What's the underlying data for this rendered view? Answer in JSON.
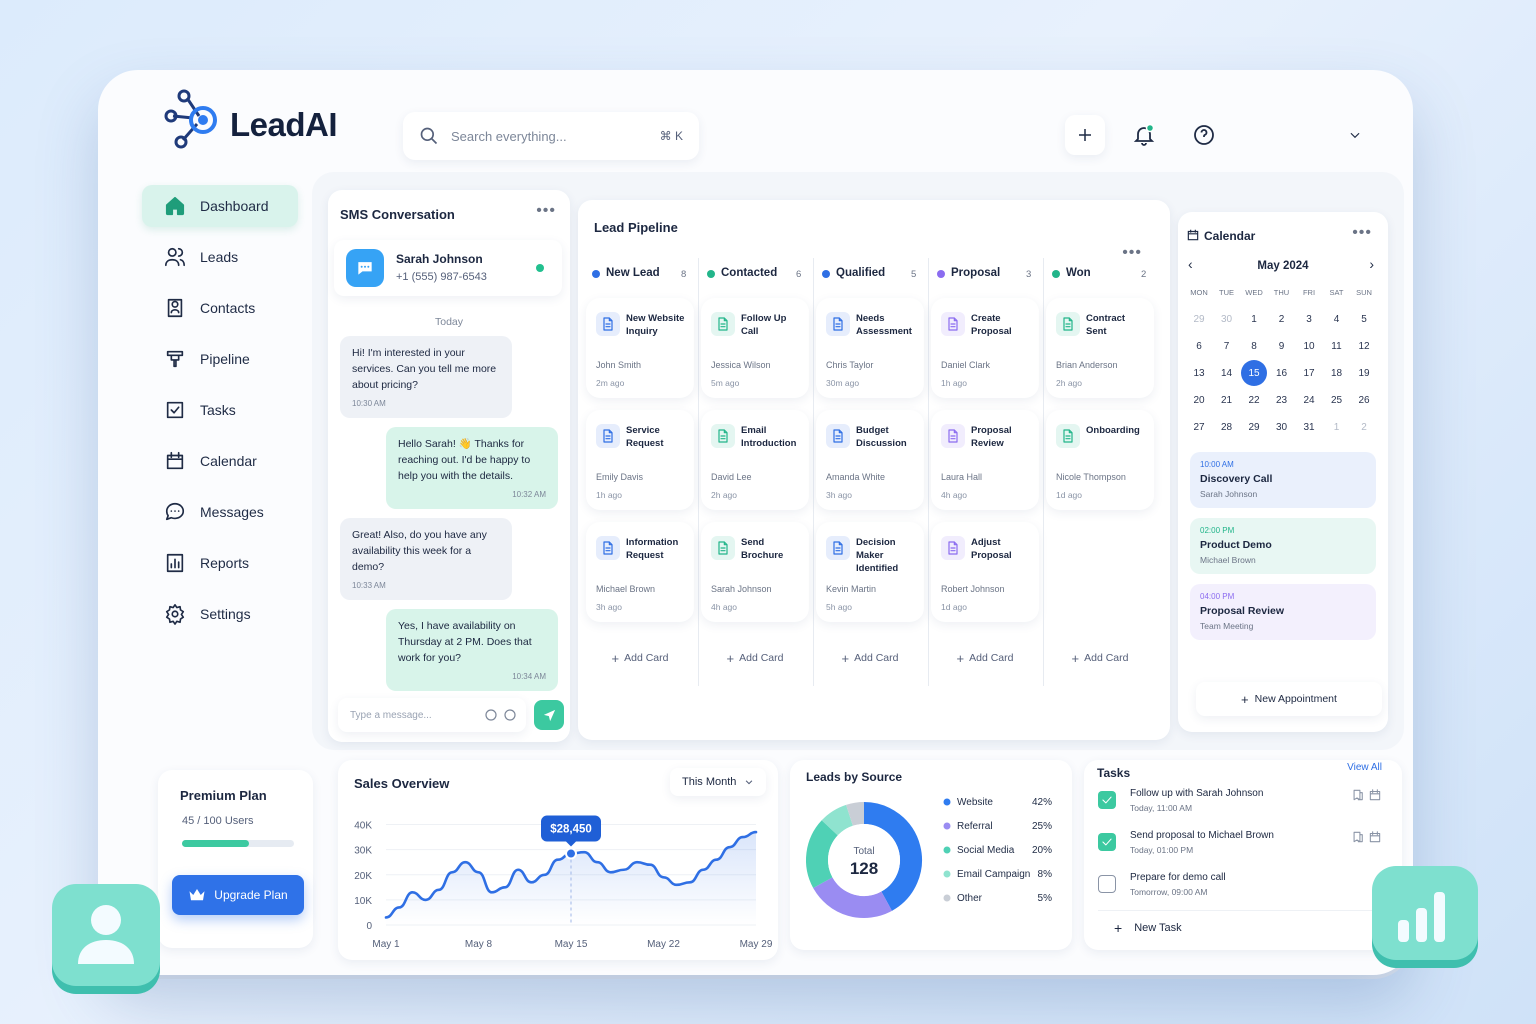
{
  "brand": "LeadAI",
  "search": {
    "placeholder": "Search everything...",
    "shortcut": "⌘ K"
  },
  "nav": [
    "Dashboard",
    "Leads",
    "Contacts",
    "Pipeline",
    "Tasks",
    "Calendar",
    "Messages",
    "Reports",
    "Settings"
  ],
  "plan": {
    "title": "Premium Plan",
    "usage": "45 / 100 Users",
    "button": "Upgrade Plan"
  },
  "sms": {
    "title": "SMS Conversation",
    "contact": {
      "name": "Sarah Johnson",
      "phone": "+1 (555) 987-6543"
    },
    "day": "Today",
    "messages": [
      {
        "from": "them",
        "text": "Hi! I'm interested in your services. Can you tell me more about pricing?",
        "time": "10:30 AM"
      },
      {
        "from": "me",
        "text": "Hello Sarah! 👋 Thanks for reaching out. I'd be happy to help you with the details.",
        "time": "10:32 AM"
      },
      {
        "from": "them",
        "text": "Great! Also, do you have any availability this week for a demo?",
        "time": "10:33 AM"
      },
      {
        "from": "me",
        "text": "Yes, I have availability on Thursday at 2 PM. Does that work for you?",
        "time": "10:34 AM"
      }
    ],
    "input_placeholder": "Type a message..."
  },
  "pipeline": {
    "title": "Lead Pipeline",
    "add_card": "Add Card",
    "columns": [
      {
        "name": "New Lead",
        "count": 8,
        "color": "#2f6fe4",
        "cards": [
          {
            "title": "New Website Inquiry",
            "person": "John Smith",
            "time": "2m ago"
          },
          {
            "title": "Service Request",
            "person": "Emily Davis",
            "time": "1h ago"
          },
          {
            "title": "Information Request",
            "person": "Michael Brown",
            "time": "3h ago"
          }
        ]
      },
      {
        "name": "Contacted",
        "count": 6,
        "color": "#22b58a",
        "cards": [
          {
            "title": "Follow Up Call",
            "person": "Jessica Wilson",
            "time": "5m ago"
          },
          {
            "title": "Email Introduction",
            "person": "David Lee",
            "time": "2h ago"
          },
          {
            "title": "Send Brochure",
            "person": "Sarah Johnson",
            "time": "4h ago"
          }
        ]
      },
      {
        "name": "Qualified",
        "count": 5,
        "color": "#2f6fe4",
        "cards": [
          {
            "title": "Needs Assessment",
            "person": "Chris Taylor",
            "time": "30m ago"
          },
          {
            "title": "Budget Discussion",
            "person": "Amanda White",
            "time": "3h ago"
          },
          {
            "title": "Decision Maker Identified",
            "person": "Kevin Martin",
            "time": "5h ago"
          }
        ]
      },
      {
        "name": "Proposal",
        "count": 3,
        "color": "#8b6cf0",
        "cards": [
          {
            "title": "Create Proposal",
            "person": "Daniel Clark",
            "time": "1h ago"
          },
          {
            "title": "Proposal Review",
            "person": "Laura Hall",
            "time": "4h ago"
          },
          {
            "title": "Adjust Proposal",
            "person": "Robert Johnson",
            "time": "1d ago"
          }
        ]
      },
      {
        "name": "Won",
        "count": 2,
        "color": "#22b58a",
        "cards": [
          {
            "title": "Contract Sent",
            "person": "Brian Anderson",
            "time": "2h ago"
          },
          {
            "title": "Onboarding",
            "person": "Nicole Thompson",
            "time": "1d ago"
          }
        ]
      }
    ]
  },
  "calendar": {
    "title": "Calendar",
    "month": "May 2024",
    "weekdays": [
      "MON",
      "TUE",
      "WED",
      "THU",
      "FRI",
      "SAT",
      "SUN"
    ],
    "days": [
      29,
      30,
      1,
      2,
      3,
      4,
      5,
      6,
      7,
      8,
      9,
      10,
      11,
      12,
      13,
      14,
      15,
      16,
      17,
      18,
      19,
      20,
      21,
      22,
      23,
      24,
      25,
      26,
      27,
      28,
      29,
      30,
      31,
      1,
      2
    ],
    "selected": 15,
    "events": [
      {
        "time": "10:00 AM",
        "title": "Discovery Call",
        "with": "Sarah Johnson",
        "color": "#2f6fe4"
      },
      {
        "time": "02:00 PM",
        "title": "Product Demo",
        "with": "Michael Brown",
        "color": "#22b58a"
      },
      {
        "time": "04:00 PM",
        "title": "Proposal Review",
        "with": "Team Meeting",
        "color": "#8b6cf0"
      }
    ],
    "new_appointment": "New Appointment"
  },
  "chart_data": [
    {
      "type": "line",
      "title": "Sales Overview",
      "period": "This Month",
      "categories": [
        "May 1",
        null,
        null,
        null,
        null,
        null,
        null,
        "May 8",
        null,
        null,
        null,
        null,
        null,
        null,
        "May 15",
        null,
        null,
        null,
        null,
        null,
        null,
        "May 22",
        null,
        null,
        null,
        null,
        null,
        null,
        "May 29"
      ],
      "series": [
        {
          "color": "#2f6fe4",
          "values": [
            3000,
            7000,
            13000,
            10000,
            14000,
            21000,
            25000,
            21000,
            13000,
            15000,
            22000,
            17000,
            20000,
            26000,
            28450,
            29000,
            25000,
            21000,
            22000,
            25000,
            24000,
            19000,
            16000,
            17000,
            22000,
            26000,
            31000,
            35000,
            37000
          ],
          "value_labels": [
            null,
            null,
            null,
            null,
            null,
            null,
            null,
            null,
            null,
            null,
            null,
            null,
            null,
            null,
            "$28,450",
            null,
            null,
            null,
            null,
            null,
            null,
            null,
            null,
            null,
            null,
            null,
            null,
            null,
            null
          ]
        }
      ],
      "ylim": [
        0,
        45000
      ],
      "yticks": [
        0,
        {
          "value": 10000,
          "label": "10K"
        },
        {
          "value": 20000,
          "label": "20K"
        },
        {
          "value": 30000,
          "label": "30K"
        },
        {
          "value": 40000,
          "label": "40K"
        }
      ]
    },
    {
      "type": "pie",
      "title": "Leads by Source",
      "center_label": "Total",
      "total": 128,
      "categories": [
        "Website",
        "Referral",
        "Social Media",
        "Email Campaign",
        "Other"
      ],
      "values": [
        42,
        25,
        20,
        8,
        5
      ],
      "value_labels": [
        "42%",
        "25%",
        "20%",
        "8%",
        "5%"
      ],
      "colors": [
        "#2f7cf0",
        "#9a8cf2",
        "#4fd1b5",
        "#8fe3cf",
        "#c9ced6"
      ]
    }
  ],
  "tasks": {
    "title": "Tasks",
    "view_all": "View All",
    "items": [
      {
        "text": "Follow up with Sarah Johnson",
        "due": "Today, 11:00 AM",
        "done": true
      },
      {
        "text": "Send proposal to Michael Brown",
        "due": "Today, 01:00 PM",
        "done": true
      },
      {
        "text": "Prepare for demo call",
        "due": "Tomorrow, 09:00 AM",
        "done": false
      }
    ],
    "new_task": "New Task"
  }
}
